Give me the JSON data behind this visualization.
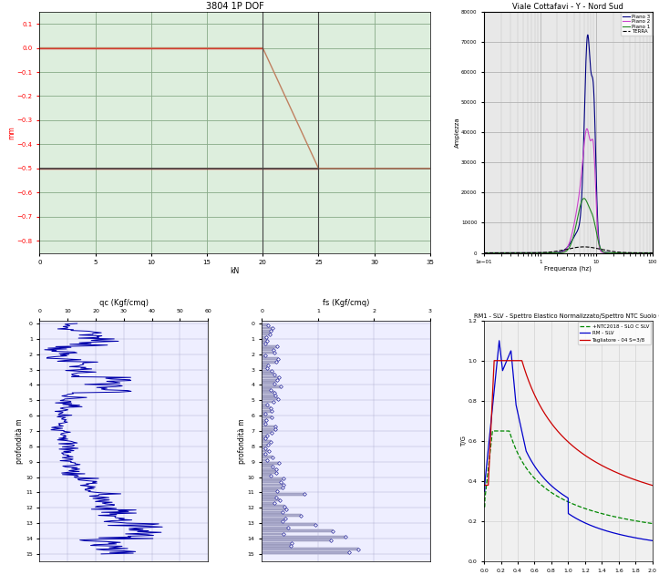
{
  "chart1": {
    "title": "3804 1P DOF",
    "ylabel": "mm",
    "xlabel": "kN",
    "xlim": [
      0,
      35
    ],
    "ylim": [
      -0.85,
      0.15
    ],
    "yticks": [
      0.1,
      0.0,
      -0.1,
      -0.2,
      -0.3,
      -0.4,
      -0.5,
      -0.6,
      -0.7,
      -0.8
    ],
    "xticks": [
      0,
      5,
      10,
      15,
      20,
      25,
      30,
      35
    ],
    "bg_color": "#ddeedd",
    "grid_color": "#88aa88",
    "line_brown_color": "#c08060",
    "line_red_color": "#dd2222",
    "line_dark_color": "#444444"
  },
  "chart2": {
    "title": "Viale Cottafavi - Y - Nord Sud",
    "ylabel": "Ampiezza",
    "xlabel": "Frequenza (hz)",
    "ylim": [
      0,
      80000
    ],
    "xlim_log": [
      0.1,
      100
    ],
    "yticks": [
      0,
      10000,
      20000,
      30000,
      40000,
      50000,
      60000,
      70000,
      80000
    ],
    "bg_color": "#e8e8e8",
    "grid_color": "#c0c0c0",
    "piano3_color": "#000080",
    "piano2_color": "#cc44cc",
    "piano1_color": "#228822",
    "terra_color": "#000000"
  },
  "chart3": {
    "title": "qc (Kgf/cmq)",
    "ylabel": "profondità m",
    "xlim": [
      0,
      60
    ],
    "ylim": [
      15.5,
      -0.2
    ],
    "xticks": [
      0,
      10,
      20,
      30,
      40,
      50,
      60
    ],
    "yticks": [
      0,
      1,
      2,
      3,
      4,
      5,
      6,
      7,
      8,
      9,
      10,
      11,
      12,
      13,
      14,
      15
    ],
    "bg_color": "#eeeeff",
    "grid_color": "#aaaacc",
    "line_color": "#0000aa"
  },
  "chart4": {
    "title": "fs (Kgf/cmq)",
    "ylabel": "profondità m",
    "xlim": [
      0.0,
      3.0
    ],
    "ylim": [
      15.5,
      -0.2
    ],
    "xticks": [
      0.0,
      1.0,
      2.0,
      3.0
    ],
    "yticks": [
      0,
      1,
      2,
      3,
      4,
      5,
      6,
      7,
      8,
      9,
      10,
      11,
      12,
      13,
      14,
      15
    ],
    "bg_color": "#eeeeff",
    "grid_color": "#aaaacc",
    "bar_color": "#aaaacc",
    "dot_color": "#4444aa"
  },
  "chart5": {
    "title": "RM1 - SLV - Spettro Elastico Normalizzato/Spettro NTC Suolo C",
    "ylabel": "T/G",
    "xlabel": "",
    "xlim": [
      0.0,
      2.0
    ],
    "ylim": [
      0.0,
      1.2
    ],
    "xticks": [
      0.0,
      0.2,
      0.4,
      0.6,
      0.8,
      1.0,
      1.2,
      1.4,
      1.6,
      1.8,
      2.0
    ],
    "yticks": [
      0.0,
      0.2,
      0.4,
      0.6,
      0.8,
      1.0,
      1.2
    ],
    "bg_color": "#f0f0f0",
    "grid_color": "#cccccc",
    "line1_color": "#008800",
    "line2_color": "#0000cc",
    "line3_color": "#cc0000",
    "legend1": "+NTC2018 - SLO C SLV",
    "legend2": "RM - SLV",
    "legend3": "Tagliatore - 04 S=3/8"
  }
}
